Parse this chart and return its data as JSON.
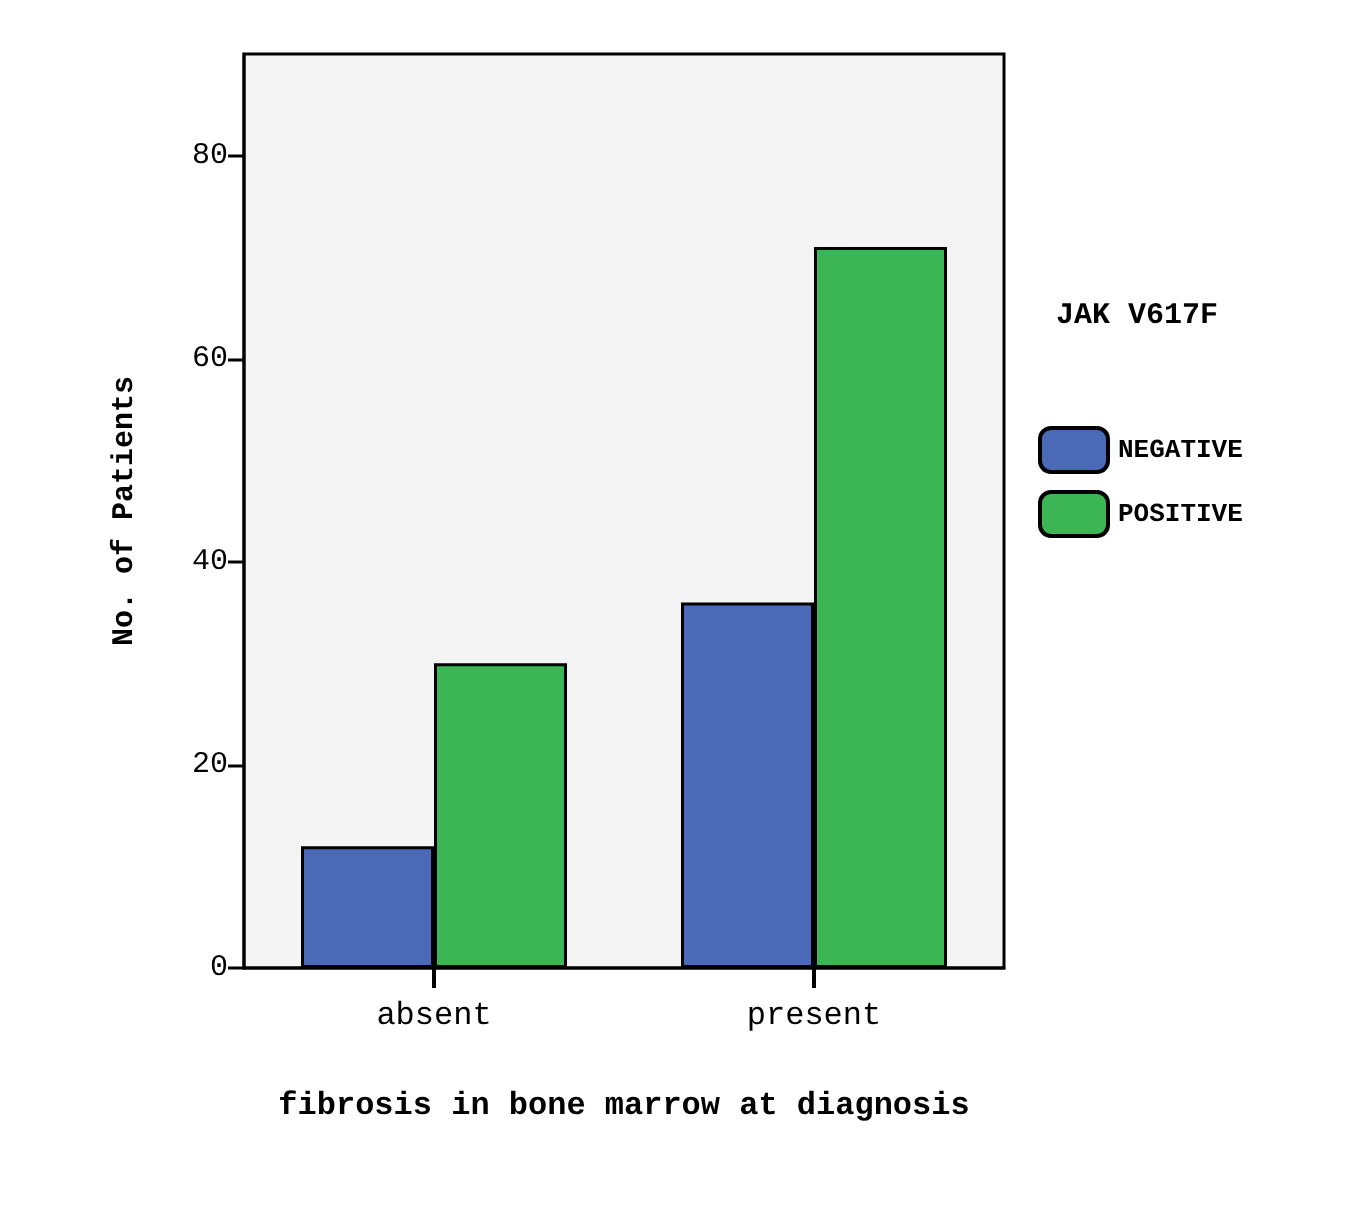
{
  "chart_data": {
    "type": "bar",
    "xlabel": "fibrosis in bone marrow at diagnosis",
    "ylabel": "No. of Patients",
    "legend_title": "JAK V617F",
    "categories": [
      "absent",
      "present"
    ],
    "series": [
      {
        "name": "NEGATIVE",
        "color": "#4a6ab8",
        "values": [
          12,
          36
        ]
      },
      {
        "name": "POSITIVE",
        "color": "#3cb554",
        "values": [
          30,
          71
        ]
      }
    ],
    "ylim": [
      0,
      90
    ],
    "yticks": [
      0,
      20,
      40,
      60,
      80
    ],
    "grid": false,
    "legend": "right"
  }
}
